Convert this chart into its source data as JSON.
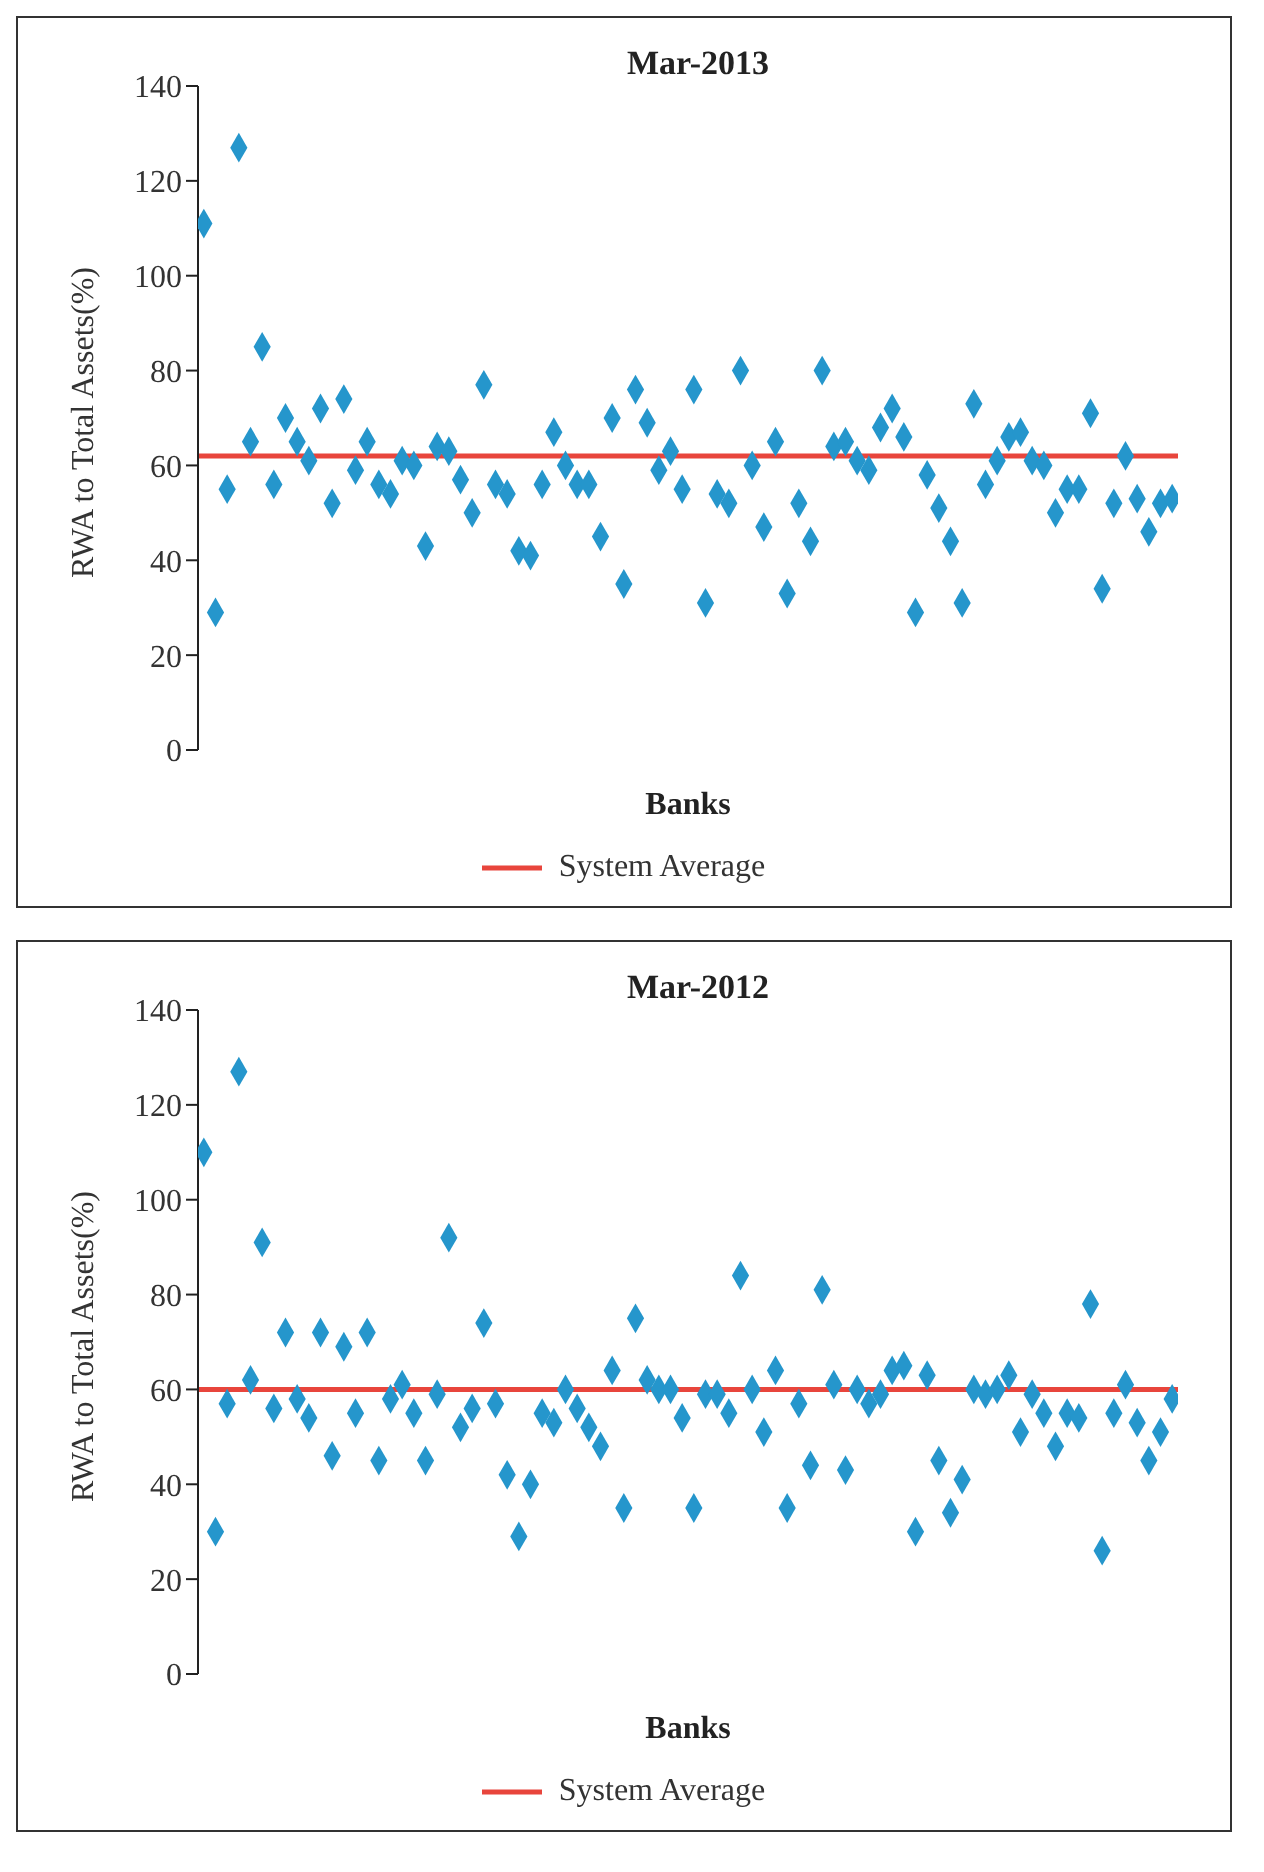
{
  "chart_data": [
    {
      "type": "scatter",
      "title": "Mar-2013",
      "xlabel": "Banks",
      "ylabel": "RWA to Total Assets(%)",
      "categories": [
        null,
        null,
        null,
        null,
        null,
        null,
        null,
        null,
        null,
        null,
        null,
        null,
        null,
        null,
        null,
        null,
        null,
        null,
        null,
        null,
        null,
        null,
        null,
        null,
        null,
        null,
        null,
        null,
        null,
        null,
        null,
        null,
        null,
        null,
        null,
        null,
        null,
        null,
        null,
        null,
        null,
        null,
        null,
        null,
        null,
        null,
        null,
        null,
        null,
        null,
        null,
        null,
        null,
        null,
        null,
        null,
        null,
        null,
        null,
        null,
        null,
        null,
        null,
        null,
        null,
        null,
        null,
        null,
        null,
        null,
        null,
        null,
        null,
        null,
        null,
        null,
        null,
        null,
        null,
        null,
        null,
        null,
        null,
        null
      ],
      "series": [
        {
          "color": "#2596cc",
          "values": [
            111,
            29,
            55,
            127,
            65,
            85,
            56,
            70,
            65,
            61,
            72,
            52,
            74,
            59,
            65,
            56,
            54,
            61,
            60,
            43,
            64,
            63,
            57,
            50,
            77,
            56,
            54,
            42,
            41,
            56,
            67,
            60,
            56,
            56,
            45,
            70,
            35,
            76,
            69,
            59,
            63,
            55,
            76,
            31,
            54,
            52,
            80,
            60,
            47,
            65,
            33,
            52,
            44,
            80,
            64,
            65,
            61,
            59,
            68,
            72,
            66,
            29,
            58,
            51,
            44,
            31,
            73,
            56,
            61,
            66,
            67,
            61,
            60,
            50,
            55,
            55,
            71,
            34,
            52,
            62,
            53,
            46,
            52,
            53
          ]
        }
      ],
      "marker": "diamond",
      "ylim": [
        0,
        140
      ],
      "yticks": [
        0,
        20,
        40,
        60,
        80,
        100,
        120,
        140
      ],
      "grid": false,
      "tick_labels": "y",
      "legend": "bottom",
      "ref_lines": [
        {
          "axis": "y",
          "value": 62,
          "label": "System Average",
          "color": "#e8453c"
        }
      ]
    },
    {
      "type": "scatter",
      "title": "Mar-2012",
      "xlabel": "Banks",
      "ylabel": "RWA to Total Assets(%)",
      "categories": [
        null,
        null,
        null,
        null,
        null,
        null,
        null,
        null,
        null,
        null,
        null,
        null,
        null,
        null,
        null,
        null,
        null,
        null,
        null,
        null,
        null,
        null,
        null,
        null,
        null,
        null,
        null,
        null,
        null,
        null,
        null,
        null,
        null,
        null,
        null,
        null,
        null,
        null,
        null,
        null,
        null,
        null,
        null,
        null,
        null,
        null,
        null,
        null,
        null,
        null,
        null,
        null,
        null,
        null,
        null,
        null,
        null,
        null,
        null,
        null,
        null,
        null,
        null,
        null,
        null,
        null,
        null,
        null,
        null,
        null,
        null,
        null,
        null,
        null,
        null,
        null,
        null,
        null,
        null,
        null,
        null,
        null,
        null,
        null
      ],
      "series": [
        {
          "color": "#2596cc",
          "values": [
            110,
            30,
            57,
            127,
            62,
            91,
            56,
            72,
            58,
            54,
            72,
            46,
            69,
            55,
            72,
            45,
            58,
            61,
            55,
            45,
            59,
            92,
            52,
            56,
            74,
            57,
            42,
            29,
            40,
            55,
            53,
            60,
            56,
            52,
            48,
            64,
            35,
            75,
            62,
            60,
            60,
            54,
            35,
            59,
            59,
            55,
            84,
            60,
            51,
            64,
            35,
            57,
            44,
            81,
            61,
            43,
            60,
            57,
            59,
            64,
            65,
            30,
            63,
            45,
            34,
            41,
            60,
            59,
            60,
            63,
            51,
            59,
            55,
            48,
            55,
            54,
            78,
            26,
            55,
            61,
            53,
            45,
            51,
            58
          ]
        }
      ],
      "marker": "diamond",
      "ylim": [
        0,
        140
      ],
      "yticks": [
        0,
        20,
        40,
        60,
        80,
        100,
        120,
        140
      ],
      "grid": false,
      "tick_labels": "y",
      "legend": "bottom",
      "ref_lines": [
        {
          "axis": "y",
          "value": 60,
          "label": "System Average",
          "color": "#e8453c"
        }
      ]
    }
  ]
}
